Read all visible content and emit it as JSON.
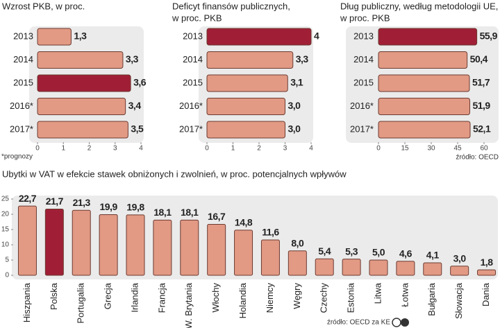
{
  "chart_data": [
    {
      "type": "bar",
      "orientation": "horizontal",
      "title": [
        "Wzrost PKB, w proc."
      ],
      "categories": [
        "2013",
        "2014",
        "2015",
        "2016*",
        "2017*"
      ],
      "values": [
        1.3,
        3.3,
        3.6,
        3.4,
        3.5
      ],
      "value_labels": [
        "1,3",
        "3,3",
        "3,6",
        "3,4",
        "3,5"
      ],
      "colors": [
        "#e29a85",
        "#e29a85",
        "#a01f36",
        "#e29a85",
        "#e29a85"
      ],
      "xlim": [
        0,
        4
      ],
      "xticks": [
        0,
        1,
        2,
        3,
        4
      ],
      "note": "*prognozy"
    },
    {
      "type": "bar",
      "orientation": "horizontal",
      "title": [
        "Deficyt finansów publicznych,",
        "w proc. PKB"
      ],
      "categories": [
        "2013",
        "2014",
        "2015",
        "2016*",
        "2017*"
      ],
      "values": [
        4,
        3.3,
        3.1,
        3.0,
        3.0
      ],
      "value_labels": [
        "4",
        "3,3",
        "3,1",
        "3,0",
        "3,0"
      ],
      "colors": [
        "#a01f36",
        "#e29a85",
        "#e29a85",
        "#e29a85",
        "#e29a85"
      ],
      "xlim": [
        0,
        4
      ],
      "xticks": [
        0,
        1,
        2,
        3,
        4
      ]
    },
    {
      "type": "bar",
      "orientation": "horizontal",
      "title": [
        "Dług publiczny, według metodologii UE,",
        "w proc. PKB"
      ],
      "categories": [
        "2013",
        "2014",
        "2015",
        "2016*",
        "2017*"
      ],
      "values": [
        55.9,
        50.4,
        51.7,
        51.9,
        52.1
      ],
      "value_labels": [
        "55,9",
        "50,4",
        "51,7",
        "51,9",
        "52,1"
      ],
      "colors": [
        "#a01f36",
        "#e29a85",
        "#e29a85",
        "#e29a85",
        "#e29a85"
      ],
      "xlim": [
        0,
        60
      ],
      "xticks": [
        0,
        15,
        30,
        45,
        60
      ],
      "source": "źródło: OECD"
    },
    {
      "type": "bar",
      "orientation": "vertical",
      "title": [
        "Ubytki w VAT w efekcie stawek obniżonych i zwolnień, w proc. potencjalnych wpływów"
      ],
      "categories": [
        "Hiszpania",
        "Polska",
        "Portugalia",
        "Grecja",
        "Irlandia",
        "Francja",
        "W. Brytania",
        "Włochy",
        "Holandia",
        "Niemcy",
        "Węgry",
        "Czechy",
        "Estonia",
        "Litwa",
        "Łotwa",
        "Bułgaria",
        "Słowacja",
        "Dania"
      ],
      "values": [
        22.7,
        21.7,
        21.3,
        19.9,
        19.8,
        18.1,
        18.1,
        16.7,
        14.8,
        11.6,
        8.0,
        5.4,
        5.3,
        5.0,
        4.6,
        4.1,
        3.0,
        1.8
      ],
      "value_labels": [
        "22,7",
        "21,7",
        "21,3",
        "19,9",
        "19,8",
        "18,1",
        "18,1",
        "16,7",
        "14,8",
        "11,6",
        "8,0",
        "5,4",
        "5,3",
        "5,0",
        "4,6",
        "4,1",
        "3,0",
        "1,8"
      ],
      "colors": [
        "#e29a85",
        "#a01f36",
        "#e29a85",
        "#e29a85",
        "#e29a85",
        "#e29a85",
        "#e29a85",
        "#e29a85",
        "#e29a85",
        "#e29a85",
        "#e29a85",
        "#e29a85",
        "#e29a85",
        "#e29a85",
        "#e29a85",
        "#e29a85",
        "#e29a85",
        "#e29a85"
      ],
      "ylim": [
        0,
        25
      ],
      "yticks": [
        0,
        5,
        10,
        15,
        20,
        25
      ],
      "source": "źródło: OECD za KE"
    }
  ]
}
